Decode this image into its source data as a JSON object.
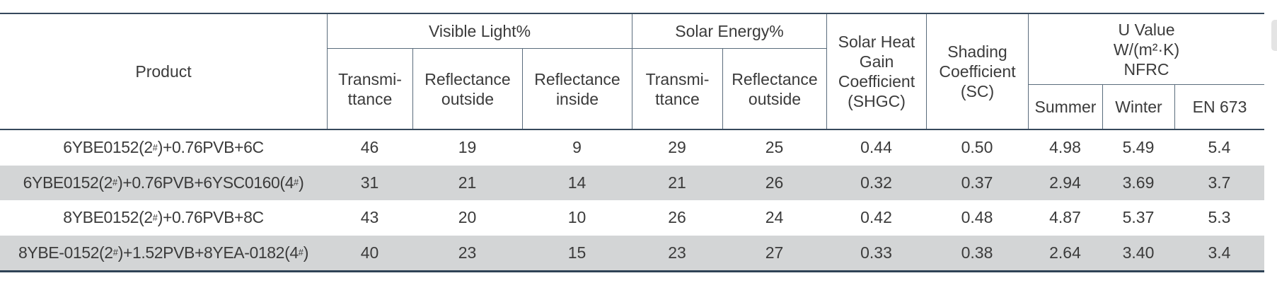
{
  "table": {
    "header": {
      "product": "Product",
      "visible_light": {
        "label": "Visible Light%",
        "columns": [
          {
            "line1": "Transmi-",
            "line2": "ttance"
          },
          {
            "line1": "Reflectance",
            "line2": "outside"
          },
          {
            "line1": "Reflectance",
            "line2": "inside"
          }
        ]
      },
      "solar_energy": {
        "label": "Solar Energy%",
        "columns": [
          {
            "line1": "Transmi-",
            "line2": "ttance"
          },
          {
            "line1": "Reflectance",
            "line2": "outside"
          }
        ]
      },
      "shgc": {
        "lines": [
          "Solar Heat",
          "Gain",
          "Coefficient",
          "(SHGC)"
        ]
      },
      "shading_coefficient": {
        "lines": [
          "Shading",
          "Coefficient",
          "(SC)"
        ]
      },
      "u_value": {
        "lines": [
          "U Value",
          "W/(m²·K)",
          "NFRC"
        ],
        "columns": [
          "Summer",
          "Winter",
          "EN 673"
        ]
      }
    },
    "rows": [
      {
        "product": "6YBE0152(2#)+0.76PVB+6C",
        "values": [
          "46",
          "19",
          "9",
          "29",
          "25",
          "0.44",
          "0.50",
          "4.98",
          "5.49",
          "5.4"
        ],
        "shaded": false
      },
      {
        "product": "6YBE0152(2#)+0.76PVB+6YSC0160(4#)",
        "values": [
          "31",
          "21",
          "14",
          "21",
          "26",
          "0.32",
          "0.37",
          "2.94",
          "3.69",
          "3.7"
        ],
        "shaded": true
      },
      {
        "product": "8YBE0152(2#)+0.76PVB+8C",
        "values": [
          "43",
          "20",
          "10",
          "26",
          "24",
          "0.42",
          "0.48",
          "4.87",
          "5.37",
          "5.3"
        ],
        "shaded": false
      },
      {
        "product": "8YBE-0152(2#)+1.52PVB+8YEA-0182(4#)",
        "values": [
          "40",
          "23",
          "15",
          "23",
          "27",
          "0.33",
          "0.38",
          "2.64",
          "3.40",
          "3.4"
        ],
        "shaded": true
      }
    ]
  },
  "colors": {
    "border_dark": "#36495c",
    "border_inner": "#5a6c7c",
    "row_shade": "#d3d5d6",
    "text": "#3b3b3b",
    "scrollbar_thumb": "#e4e4e4"
  }
}
